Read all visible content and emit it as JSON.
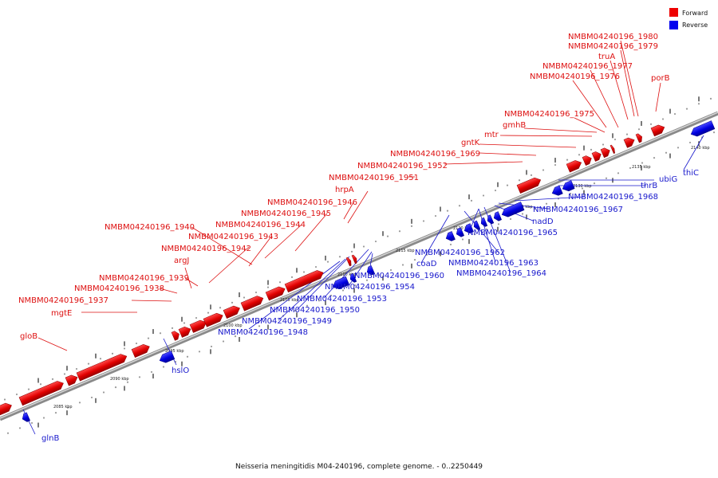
{
  "caption": "Neisseria meningitidis M04-240196, complete genome. - 0..2250449",
  "legend": [
    {
      "label": "Forward",
      "color": "#ee0000"
    },
    {
      "label": "Reverse",
      "color": "#0000ee"
    }
  ],
  "colors": {
    "forward": "#ee0000",
    "reverse": "#0000ee",
    "forward_text": "#dd1010",
    "reverse_text": "#1818cc"
  },
  "scale_labels": [
    "2085 kbp",
    "2090 kbp",
    "2095 kbp",
    "2100 kbp",
    "2105 kbp",
    "2110 kbp",
    "2115 kbp",
    "2120 kbp",
    "2125 kbp",
    "2130 kbp",
    "2135 kbp",
    "2140 kbp"
  ],
  "forward_labels": [
    "NMBM04240196_1980",
    "NMBM04240196_1979",
    "truA",
    "NMBM04240196_1977",
    "NMBM04240196_1976",
    "porB",
    "NMBM04240196_1975",
    "gmhB",
    "mtr",
    "gntK",
    "NMBM04240196_1969",
    "NMBM04240196_1952",
    "NMBM04240196_1951",
    "hrpA",
    "NMBM04240196_1946",
    "NMBM04240196_1945",
    "NMBM04240196_1944",
    "NMBM04240196_1940",
    "NMBM04240196_1943",
    "argJ",
    "NMBM04240196_1942",
    "NMBM04240196_1939",
    "NMBM04240196_1938",
    "NMBM04240196_1937",
    "mgtE",
    "gloB"
  ],
  "reverse_labels": [
    "thiC",
    "ubiG",
    "thrB",
    "NMBM04240196_1968",
    "NMBM04240196_1967",
    "nadD",
    "NMBM04240196_1965",
    "NMBM04240196_1962",
    "coaD",
    "NMBM04240196_1963",
    "NMBM04240196_1964",
    "NMBM04240196_1960",
    "NMBM04240196_1954",
    "NMBM04240196_1953",
    "NMBM04240196_1950",
    "NMBM04240196_1949",
    "NMBM04240196_1948",
    "hslO",
    "glnB"
  ]
}
